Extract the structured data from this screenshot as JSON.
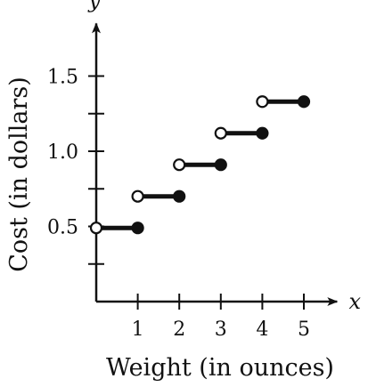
{
  "chart_data": {
    "type": "line",
    "step": true,
    "title": "",
    "xlabel": "Weight (in ounces)",
    "ylabel": "Cost (in dollars)",
    "x_axis_var": "x",
    "y_axis_var": "y",
    "xlim": [
      0,
      5.8
    ],
    "ylim": [
      0,
      1.85
    ],
    "x_ticks": [
      1,
      2,
      3,
      4,
      5
    ],
    "x_tick_labels": [
      "1",
      "2",
      "3",
      "4",
      "5"
    ],
    "y_ticks": [
      0.25,
      0.5,
      0.75,
      1.0,
      1.25,
      1.5
    ],
    "y_tick_labels": [
      {
        "value": 0.5,
        "label": "0.5"
      },
      {
        "value": 1.0,
        "label": "1.0"
      },
      {
        "value": 1.5,
        "label": "1.5"
      }
    ],
    "segments": [
      {
        "x_start": 0,
        "x_end": 1,
        "y": 0.49,
        "start_open": true,
        "end_closed": true
      },
      {
        "x_start": 1,
        "x_end": 2,
        "y": 0.7,
        "start_open": true,
        "end_closed": true
      },
      {
        "x_start": 2,
        "x_end": 3,
        "y": 0.91,
        "start_open": true,
        "end_closed": true
      },
      {
        "x_start": 3,
        "x_end": 4,
        "y": 1.12,
        "start_open": true,
        "end_closed": true
      },
      {
        "x_start": 4,
        "x_end": 5,
        "y": 1.33,
        "start_open": true,
        "end_closed": true
      }
    ],
    "grid": false,
    "colors": {
      "ink": "#111111",
      "background": "#ffffff"
    }
  }
}
